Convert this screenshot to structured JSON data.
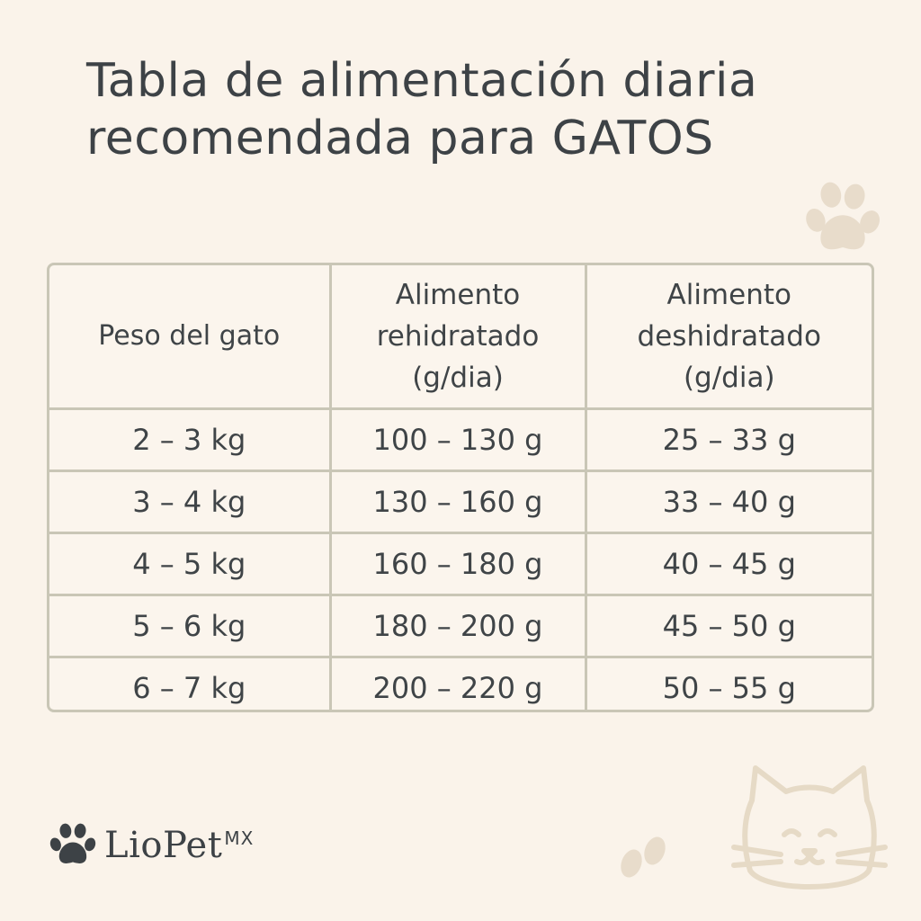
{
  "title": {
    "line1": "Tabla de alimentación diaria",
    "line2": "recomendada para GATOS"
  },
  "table": {
    "headers": [
      {
        "lines": [
          "Peso del gato"
        ]
      },
      {
        "lines": [
          "Alimento",
          "rehidratado",
          "(g/dia)"
        ]
      },
      {
        "lines": [
          "Alimento",
          "deshidratado",
          "(g/dia)"
        ]
      }
    ],
    "rows": [
      [
        "2 – 3 kg",
        "100 – 130 g",
        "25 – 33 g"
      ],
      [
        "3 – 4 kg",
        "130 – 160 g",
        "33 – 40 g"
      ],
      [
        "4 – 5 kg",
        "160 – 180 g",
        "40 – 45 g"
      ],
      [
        "5 – 6 kg",
        "180 – 200 g",
        "45 – 50 g"
      ],
      [
        "6 – 7 kg",
        "200 – 220 g",
        "50 – 55 g"
      ]
    ]
  },
  "brand": {
    "name": "LioPet",
    "suffix": "MX"
  },
  "icons": {
    "logo": "paw-icon",
    "decor_top": "paw-icon",
    "decor_bottom": "cat-face-icon",
    "decor_steps": "paw-prints-icon"
  },
  "colors": {
    "background": "#faf3ea",
    "text": "#3f4447",
    "border": "#c9c6b6",
    "decor": "#e8dccb"
  }
}
